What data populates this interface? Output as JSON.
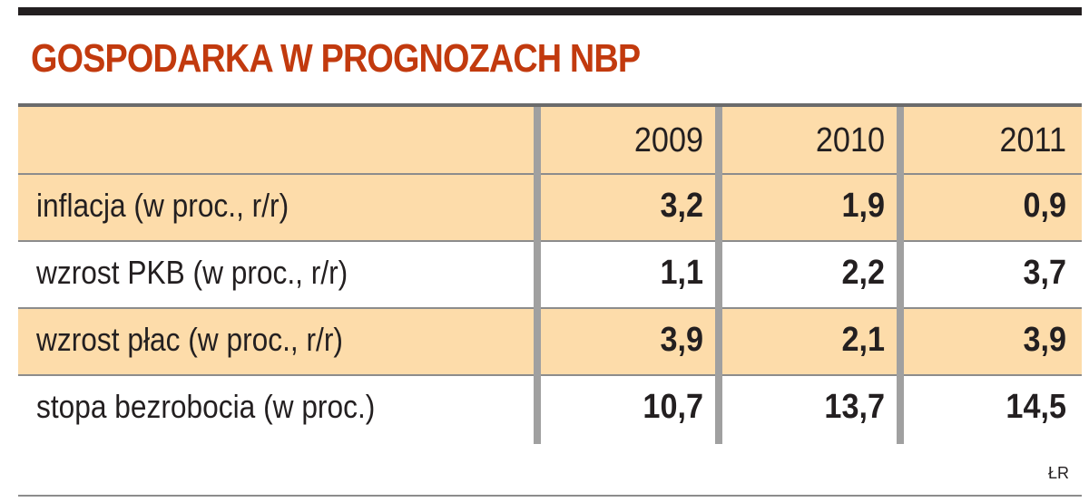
{
  "title": "GOSPODARKA W PROGNOZACH NBP",
  "source": "ŁR",
  "colors": {
    "title": "#c23a0e",
    "shade": "#fddcaa",
    "text": "#231f20"
  },
  "chart_data": {
    "type": "table",
    "title": "GOSPODARKA W PROGNOZACH NBP",
    "columns": [
      "2009",
      "2010",
      "2011"
    ],
    "rows": [
      {
        "label": "inflacja (w proc., r/r)",
        "values": [
          "3,2",
          "1,9",
          "0,9"
        ]
      },
      {
        "label": "wzrost PKB (w proc., r/r)",
        "values": [
          "1,1",
          "2,2",
          "3,7"
        ]
      },
      {
        "label": "wzrost płac (w proc., r/r)",
        "values": [
          "3,9",
          "2,1",
          "3,9"
        ]
      },
      {
        "label": "stopa bezrobocia (w proc.)",
        "values": [
          "10,7",
          "13,7",
          "14,5"
        ]
      }
    ]
  }
}
